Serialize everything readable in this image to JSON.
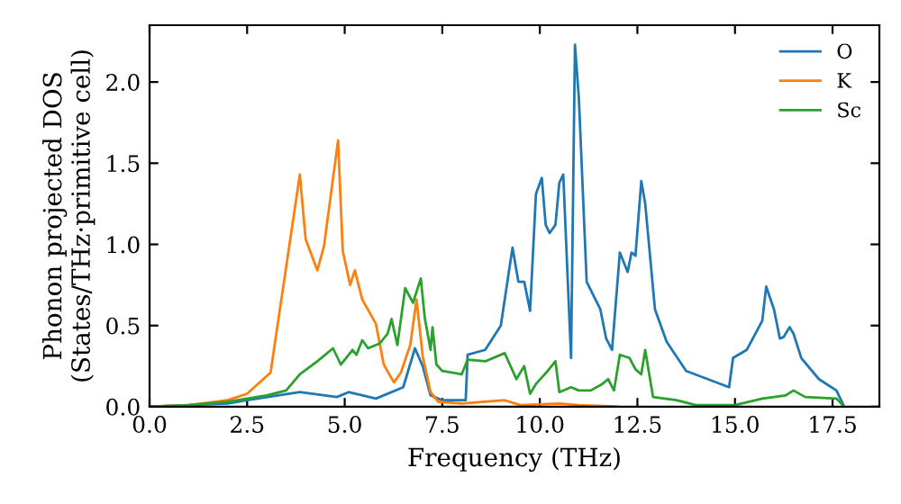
{
  "chart_data": {
    "type": "line",
    "xlabel": "Frequency (THz)",
    "ylabel": "Phonon projected DOS\n(States/THz·primitive cell)",
    "xlim": [
      0,
      18.7
    ],
    "ylim": [
      0,
      2.35
    ],
    "xticks": [
      {
        "value": 0,
        "label": "0.0"
      },
      {
        "value": 2.5,
        "label": "2.5"
      },
      {
        "value": 5,
        "label": "5.0"
      },
      {
        "value": 7.5,
        "label": "7.5"
      },
      {
        "value": 10,
        "label": "10.0"
      },
      {
        "value": 12.5,
        "label": "12.5"
      },
      {
        "value": 15,
        "label": "15.0"
      },
      {
        "value": 17.5,
        "label": "17.5"
      }
    ],
    "yticks": [
      {
        "value": 0,
        "label": "0.0"
      },
      {
        "value": 0.5,
        "label": "0.5"
      },
      {
        "value": 1,
        "label": "1.0"
      },
      {
        "value": 1.5,
        "label": "1.5"
      },
      {
        "value": 2,
        "label": "2.0"
      }
    ],
    "legend": "top right",
    "grid": false,
    "marker": "none",
    "line_style": "solid",
    "series": [
      {
        "name": "O",
        "color": "#1f77b4",
        "x": [
          0,
          1,
          2,
          2.5,
          3.85,
          4.8,
          5.1,
          5.8,
          6.5,
          6.8,
          7.0,
          7.2,
          7.5,
          8.1,
          8.15,
          8.6,
          9.0,
          9.3,
          9.45,
          9.6,
          9.75,
          9.9,
          10.05,
          10.15,
          10.25,
          10.4,
          10.5,
          10.6,
          10.8,
          10.9,
          11.0,
          11.2,
          11.55,
          11.7,
          11.85,
          12.05,
          12.25,
          12.35,
          12.45,
          12.6,
          12.7,
          12.95,
          13.25,
          13.75,
          14.85,
          14.95,
          15.3,
          15.7,
          15.8,
          16.0,
          16.15,
          16.25,
          16.4,
          16.5,
          16.7,
          17.15,
          17.6,
          17.8
        ],
        "values": [
          0,
          0.01,
          0.02,
          0.04,
          0.09,
          0.06,
          0.09,
          0.05,
          0.12,
          0.36,
          0.25,
          0.07,
          0.04,
          0.04,
          0.32,
          0.35,
          0.5,
          0.98,
          0.77,
          0.77,
          0.59,
          1.31,
          1.41,
          1.12,
          1.07,
          1.12,
          1.38,
          1.43,
          0.3,
          2.23,
          1.9,
          0.77,
          0.6,
          0.42,
          0.35,
          0.95,
          0.83,
          0.95,
          0.93,
          1.39,
          1.25,
          0.6,
          0.4,
          0.22,
          0.12,
          0.3,
          0.35,
          0.53,
          0.74,
          0.6,
          0.42,
          0.43,
          0.49,
          0.45,
          0.3,
          0.17,
          0.1,
          0
        ]
      },
      {
        "name": "K",
        "color": "#ff7f0e",
        "x": [
          0,
          1,
          2,
          2.5,
          3.1,
          3.85,
          4.0,
          4.3,
          4.47,
          4.83,
          4.95,
          5.14,
          5.26,
          5.45,
          5.8,
          6.0,
          6.26,
          6.44,
          6.68,
          6.84,
          7.0,
          7.2,
          7.4,
          8.0,
          9.1,
          9.5,
          10.5,
          11,
          12
        ],
        "values": [
          0,
          0.01,
          0.04,
          0.08,
          0.21,
          1.43,
          1.03,
          0.84,
          0.99,
          1.64,
          0.96,
          0.75,
          0.84,
          0.66,
          0.51,
          0.26,
          0.15,
          0.21,
          0.38,
          0.66,
          0.31,
          0.09,
          0.03,
          0.02,
          0.04,
          0.01,
          0.02,
          0.01,
          0
        ]
      },
      {
        "name": "Sc",
        "color": "#2ca02c",
        "x": [
          0,
          1,
          2,
          2.5,
          3.0,
          3.5,
          3.85,
          4.3,
          4.7,
          4.9,
          5.2,
          5.3,
          5.45,
          5.6,
          5.9,
          6.1,
          6.2,
          6.35,
          6.55,
          6.75,
          6.95,
          7.05,
          7.2,
          7.25,
          7.35,
          7.5,
          8.0,
          8.15,
          8.6,
          9.1,
          9.4,
          9.6,
          9.75,
          9.9,
          10.2,
          10.4,
          10.5,
          10.8,
          11.0,
          11.3,
          11.6,
          11.75,
          11.9,
          12.05,
          12.3,
          12.45,
          12.6,
          12.7,
          12.9,
          13.5,
          14.0,
          15.0,
          15.7,
          16.3,
          16.5,
          16.8,
          17.6,
          17.8
        ],
        "values": [
          0,
          0.01,
          0.03,
          0.05,
          0.07,
          0.1,
          0.2,
          0.28,
          0.36,
          0.26,
          0.35,
          0.32,
          0.41,
          0.36,
          0.39,
          0.45,
          0.54,
          0.38,
          0.73,
          0.64,
          0.79,
          0.55,
          0.35,
          0.49,
          0.26,
          0.22,
          0.2,
          0.29,
          0.28,
          0.33,
          0.17,
          0.25,
          0.08,
          0.14,
          0.22,
          0.28,
          0.09,
          0.12,
          0.1,
          0.1,
          0.14,
          0.17,
          0.1,
          0.32,
          0.3,
          0.23,
          0.2,
          0.35,
          0.06,
          0.04,
          0.01,
          0.01,
          0.05,
          0.07,
          0.1,
          0.06,
          0.05,
          0
        ]
      }
    ]
  }
}
